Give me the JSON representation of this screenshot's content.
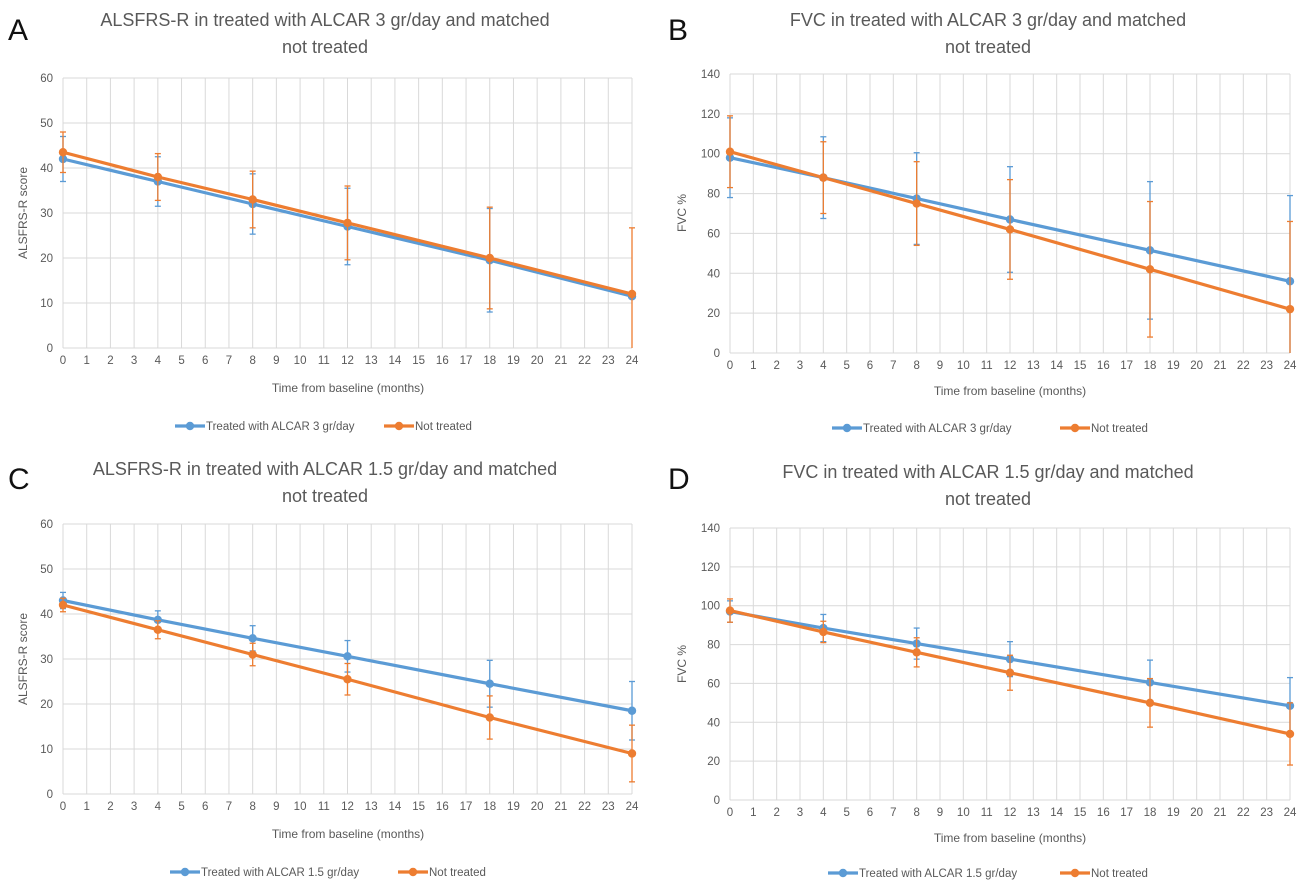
{
  "colors": {
    "treated": "#5b9bd5",
    "not_treated": "#ed7d31",
    "grid": "#d9d9d9",
    "text": "#595959"
  },
  "chart_data": [
    {
      "panel": "A",
      "type": "line",
      "title_lines": [
        "ALSFRS-R in treated with ALCAR 3 gr/day and matched",
        "not treated"
      ],
      "xlabel": "Time from baseline (months)",
      "ylabel": "ALSFRS-R score",
      "xlim": [
        0,
        24
      ],
      "ylim": [
        0,
        60
      ],
      "ystep": 10,
      "x_ticks": [
        0,
        1,
        2,
        3,
        4,
        5,
        6,
        7,
        8,
        9,
        10,
        11,
        12,
        13,
        14,
        15,
        16,
        17,
        18,
        19,
        20,
        21,
        22,
        23,
        24
      ],
      "grid": true,
      "legend": "bottom",
      "series": [
        {
          "name": "Treated with ALCAR 3 gr/day",
          "color_key": "treated",
          "x": [
            0,
            4,
            8,
            12,
            18,
            24
          ],
          "y": [
            42.0,
            37.0,
            32.0,
            27.0,
            19.5,
            11.5
          ],
          "err": [
            5.0,
            5.5,
            6.7,
            8.5,
            11.5,
            0
          ]
        },
        {
          "name": "Not treated",
          "color_key": "not_treated",
          "x": [
            0,
            4,
            8,
            12,
            18,
            24
          ],
          "y": [
            43.5,
            38.0,
            33.0,
            27.8,
            20.0,
            12.0
          ],
          "err": [
            4.5,
            5.2,
            6.3,
            8.2,
            11.3,
            14.7
          ]
        }
      ]
    },
    {
      "panel": "B",
      "type": "line",
      "title_lines": [
        "FVC in treated with ALCAR 3 gr/day and matched",
        "not treated"
      ],
      "xlabel": "Time from baseline (months)",
      "ylabel": "FVC %",
      "xlim": [
        0,
        24
      ],
      "ylim": [
        0,
        140
      ],
      "ystep": 20,
      "x_ticks": [
        0,
        1,
        2,
        3,
        4,
        5,
        6,
        7,
        8,
        9,
        10,
        11,
        12,
        13,
        14,
        15,
        16,
        17,
        18,
        19,
        20,
        21,
        22,
        23,
        24
      ],
      "grid": true,
      "legend": "bottom",
      "series": [
        {
          "name": "Treated with ALCAR 3 gr/day",
          "color_key": "treated",
          "x": [
            0,
            4,
            8,
            12,
            18,
            24
          ],
          "y": [
            98,
            88,
            77.5,
            67,
            51.5,
            36
          ],
          "err": [
            20,
            20.5,
            23,
            26.5,
            34.5,
            43
          ]
        },
        {
          "name": "Not treated",
          "color_key": "not_treated",
          "x": [
            0,
            4,
            8,
            12,
            18,
            24
          ],
          "y": [
            101,
            88,
            75,
            62,
            42,
            22
          ],
          "err": [
            18,
            18,
            21,
            25,
            34,
            44
          ]
        }
      ]
    },
    {
      "panel": "C",
      "type": "line",
      "title_lines": [
        "ALSFRS-R in treated with ALCAR 1.5 gr/day and matched",
        "not treated"
      ],
      "xlabel": "Time from baseline (months)",
      "ylabel": "ALSFRS-R score",
      "xlim": [
        0,
        24
      ],
      "ylim": [
        0,
        60
      ],
      "ystep": 10,
      "x_ticks": [
        0,
        1,
        2,
        3,
        4,
        5,
        6,
        7,
        8,
        9,
        10,
        11,
        12,
        13,
        14,
        15,
        16,
        17,
        18,
        19,
        20,
        21,
        22,
        23,
        24
      ],
      "grid": true,
      "legend": "bottom",
      "series": [
        {
          "name": "Treated with ALCAR 1.5 gr/day",
          "color_key": "treated",
          "x": [
            0,
            4,
            8,
            12,
            18,
            24
          ],
          "y": [
            43,
            38.7,
            34.6,
            30.6,
            24.5,
            18.5
          ],
          "err": [
            1.8,
            2.0,
            2.8,
            3.5,
            5.2,
            6.5
          ]
        },
        {
          "name": "Not treated",
          "color_key": "not_treated",
          "x": [
            0,
            4,
            8,
            12,
            18,
            24
          ],
          "y": [
            42,
            36.5,
            31,
            25.5,
            17,
            9
          ],
          "err": [
            1.5,
            2.0,
            2.5,
            3.5,
            4.8,
            6.3
          ]
        }
      ]
    },
    {
      "panel": "D",
      "type": "line",
      "title_lines": [
        "FVC in treated with ALCAR 1.5 gr/day and matched",
        "not treated"
      ],
      "xlabel": "Time from baseline (months)",
      "ylabel": "FVC %",
      "xlim": [
        0,
        24
      ],
      "ylim": [
        0,
        140
      ],
      "ystep": 20,
      "x_ticks": [
        0,
        1,
        2,
        3,
        4,
        5,
        6,
        7,
        8,
        9,
        10,
        11,
        12,
        13,
        14,
        15,
        16,
        17,
        18,
        19,
        20,
        21,
        22,
        23,
        24
      ],
      "grid": true,
      "legend": "bottom",
      "series": [
        {
          "name": "Treated with ALCAR 1.5 gr/day",
          "color_key": "treated",
          "x": [
            0,
            4,
            8,
            12,
            18,
            24
          ],
          "y": [
            97,
            88.5,
            80.5,
            72.5,
            60.5,
            48.5
          ],
          "err": [
            5.5,
            7,
            8,
            9,
            11.5,
            14.5
          ]
        },
        {
          "name": "Not treated",
          "color_key": "not_treated",
          "x": [
            0,
            4,
            8,
            12,
            18,
            24
          ],
          "y": [
            97.5,
            86.5,
            76,
            65.5,
            50,
            34
          ],
          "err": [
            6,
            5.5,
            7.5,
            9,
            12.5,
            16
          ]
        }
      ]
    }
  ]
}
